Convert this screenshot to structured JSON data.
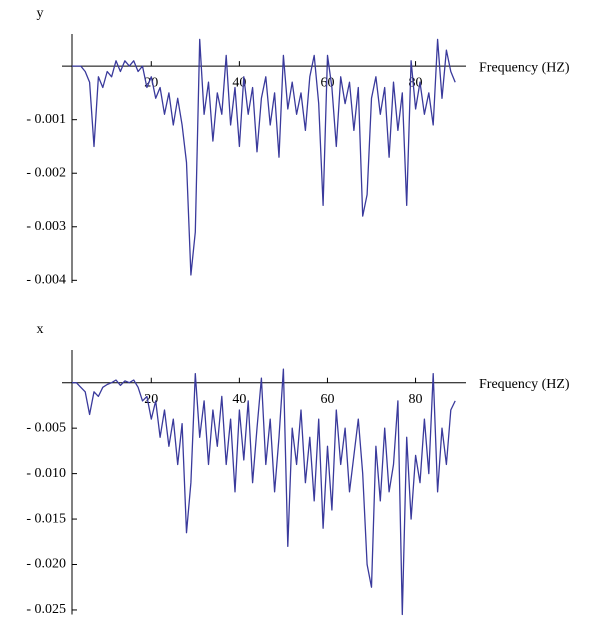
{
  "chart_data": [
    {
      "type": "line",
      "y_label": "y",
      "x_label": "Frequency (HZ)",
      "color": "#3a3a9c",
      "x": [
        2,
        3,
        4,
        5,
        6,
        7,
        8,
        9,
        10,
        11,
        12,
        13,
        14,
        15,
        16,
        17,
        18,
        19,
        20,
        21,
        22,
        23,
        24,
        25,
        26,
        27,
        28,
        29,
        30,
        31,
        32,
        33,
        34,
        35,
        36,
        37,
        38,
        39,
        40,
        41,
        42,
        43,
        44,
        45,
        46,
        47,
        48,
        49,
        50,
        51,
        52,
        53,
        54,
        55,
        56,
        57,
        58,
        59,
        60,
        61,
        62,
        63,
        64,
        65,
        66,
        67,
        68,
        69,
        70,
        71,
        72,
        73,
        74,
        75,
        76,
        77,
        78,
        79,
        80,
        81,
        82,
        83,
        84,
        85,
        86,
        87,
        88,
        89
      ],
      "values": [
        0,
        0,
        0,
        -0.0001,
        -0.0003,
        -0.0015,
        -0.0002,
        -0.0004,
        -0.0001,
        -0.0002,
        0.0001,
        -0.0001,
        0.0001,
        0,
        0.0001,
        -0.0001,
        0,
        -0.0004,
        -0.0002,
        -0.0006,
        -0.0004,
        -0.0009,
        -0.0005,
        -0.0011,
        -0.0006,
        -0.0011,
        -0.0018,
        -0.0039,
        -0.0031,
        0.0005,
        -0.0009,
        -0.0003,
        -0.0014,
        -0.0005,
        -0.0009,
        0.0002,
        -0.0011,
        -0.0004,
        -0.0015,
        -0.0002,
        -0.0009,
        -0.0004,
        -0.0016,
        -0.0006,
        -0.0002,
        -0.0011,
        -0.0005,
        -0.0017,
        0.0002,
        -0.0008,
        -0.0003,
        -0.0009,
        -0.0005,
        -0.0012,
        -0.0002,
        0.0002,
        -0.0007,
        -0.0026,
        0.0002,
        -0.0004,
        -0.0015,
        -0.0002,
        -0.0007,
        -0.0003,
        -0.0012,
        -0.0004,
        -0.0028,
        -0.0024,
        -0.0006,
        -0.0002,
        -0.0009,
        -0.0004,
        -0.0017,
        -0.0003,
        -0.0012,
        -0.0005,
        -0.0026,
        0.0001,
        -0.0008,
        -0.0003,
        -0.0009,
        -0.0005,
        -0.0011,
        0.0005,
        -0.0006,
        0.0003,
        -0.0001,
        -0.0003
      ],
      "xlim": [
        2,
        91
      ],
      "xticks": [
        20,
        40,
        60,
        80
      ],
      "ylim": [
        -0.00405,
        0.0006
      ],
      "yticks": [
        {
          "value": -0.001,
          "label": "- 0.001"
        },
        {
          "value": -0.002,
          "label": "- 0.002"
        },
        {
          "value": -0.003,
          "label": "- 0.003"
        },
        {
          "value": -0.004,
          "label": "- 0.004"
        }
      ]
    },
    {
      "type": "line",
      "y_label": "x",
      "x_label": "Frequency (HZ)",
      "color": "#3a3a9c",
      "x": [
        2,
        3,
        4,
        5,
        6,
        7,
        8,
        9,
        10,
        11,
        12,
        13,
        14,
        15,
        16,
        17,
        18,
        19,
        20,
        21,
        22,
        23,
        24,
        25,
        26,
        27,
        28,
        29,
        30,
        31,
        32,
        33,
        34,
        35,
        36,
        37,
        38,
        39,
        40,
        41,
        42,
        43,
        44,
        45,
        46,
        47,
        48,
        49,
        50,
        51,
        52,
        53,
        54,
        55,
        56,
        57,
        58,
        59,
        60,
        61,
        62,
        63,
        64,
        65,
        66,
        67,
        68,
        69,
        70,
        71,
        72,
        73,
        74,
        75,
        76,
        77,
        78,
        79,
        80,
        81,
        82,
        83,
        84,
        85,
        86,
        87,
        88,
        89
      ],
      "values": [
        0,
        0,
        -0.0005,
        -0.001,
        -0.0035,
        -0.001,
        -0.0015,
        -0.0005,
        -0.0002,
        0,
        0.0003,
        -0.0003,
        0.0002,
        0,
        0.0003,
        -0.0005,
        -0.002,
        -0.0015,
        -0.004,
        -0.002,
        -0.006,
        -0.003,
        -0.007,
        -0.004,
        -0.009,
        -0.0045,
        -0.0165,
        -0.011,
        0.001,
        -0.006,
        -0.002,
        -0.009,
        -0.003,
        -0.007,
        -0.0015,
        -0.009,
        -0.004,
        -0.012,
        -0.003,
        -0.0085,
        -0.002,
        -0.011,
        -0.005,
        0.0005,
        -0.009,
        -0.004,
        -0.012,
        -0.006,
        0.0015,
        -0.018,
        -0.005,
        -0.009,
        -0.003,
        -0.011,
        -0.006,
        -0.013,
        -0.004,
        -0.016,
        -0.007,
        -0.014,
        -0.003,
        -0.009,
        -0.005,
        -0.012,
        -0.008,
        -0.004,
        -0.01,
        -0.02,
        -0.0225,
        -0.007,
        -0.013,
        -0.005,
        -0.012,
        -0.009,
        -0.002,
        -0.0255,
        -0.006,
        -0.015,
        -0.008,
        -0.011,
        -0.004,
        -0.01,
        0.001,
        -0.012,
        -0.005,
        -0.009,
        -0.003,
        -0.002
      ],
      "xlim": [
        2,
        91
      ],
      "xticks": [
        20,
        40,
        60,
        80
      ],
      "ylim": [
        -0.0255,
        0.0036
      ],
      "yticks": [
        {
          "value": -0.005,
          "label": "- 0.005"
        },
        {
          "value": -0.01,
          "label": "- 0.010"
        },
        {
          "value": -0.015,
          "label": "- 0.015"
        },
        {
          "value": -0.02,
          "label": "- 0.020"
        },
        {
          "value": -0.025,
          "label": "- 0.025"
        }
      ]
    }
  ]
}
